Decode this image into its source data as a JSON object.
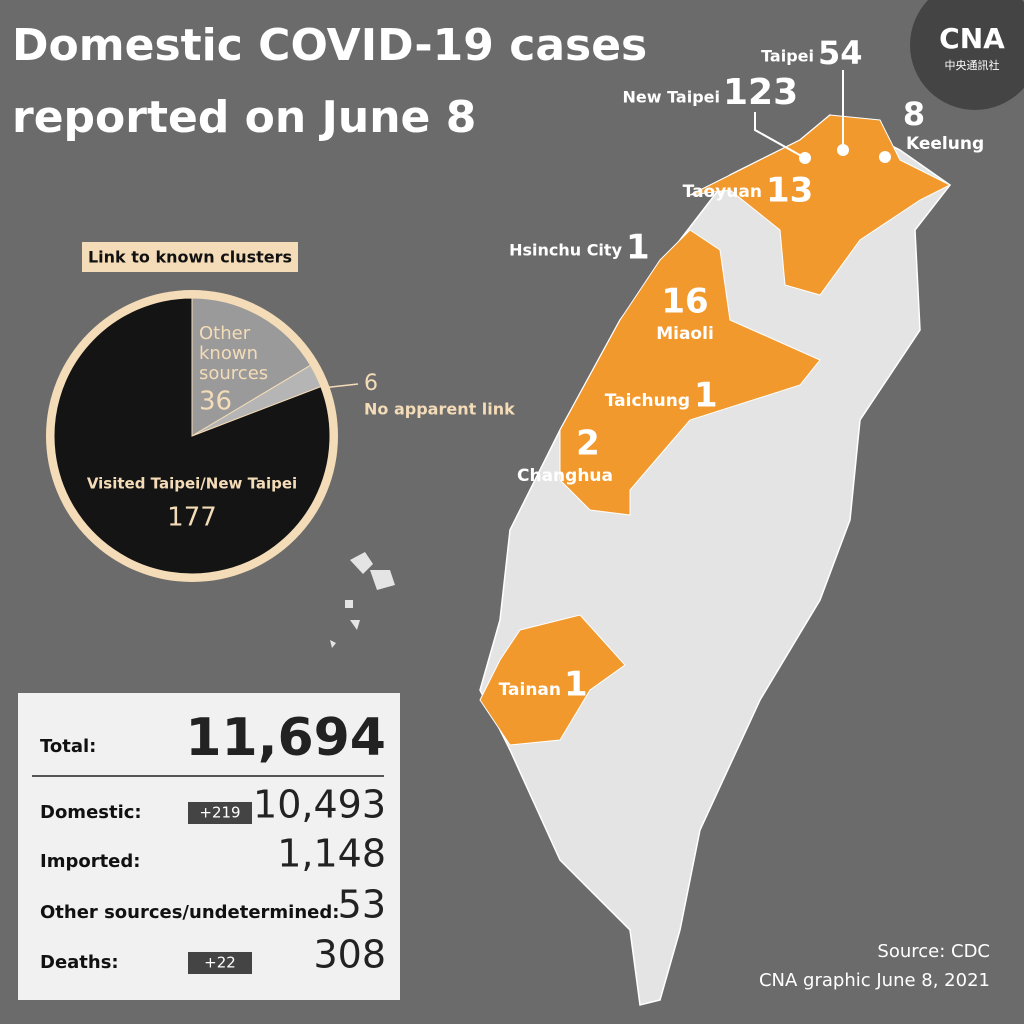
{
  "title": [
    "Domestic COVID-19 cases",
    "reported on June 8"
  ],
  "chart_data": {
    "type": "pie",
    "title": "Link to known clusters",
    "categories": [
      "Other known sources",
      "No apparent link",
      "Visited Taipei/New Taipei"
    ],
    "values": [
      36,
      6,
      177
    ],
    "colors": [
      "#9a9a9a",
      "#b5b5b5",
      "#141414"
    ]
  },
  "map": {
    "regions": [
      {
        "name": "Taipei",
        "cases": "54"
      },
      {
        "name": "New Taipei",
        "cases": "123"
      },
      {
        "name": "Keelung",
        "cases": "8"
      },
      {
        "name": "Taoyuan",
        "cases": "13"
      },
      {
        "name": "Hsinchu City",
        "cases": "1"
      },
      {
        "name": "Miaoli",
        "cases": "16"
      },
      {
        "name": "Taichung",
        "cases": "1"
      },
      {
        "name": "Changhua",
        "cases": "2"
      },
      {
        "name": "Tainan",
        "cases": "1"
      }
    ]
  },
  "stats": {
    "rows": [
      {
        "label": "Total:",
        "value": "11,694"
      },
      {
        "label": "Domestic:",
        "change": "+219",
        "value": "10,493"
      },
      {
        "label": "Imported:",
        "value": "1,148"
      },
      {
        "label": "Other sources/undetermined:",
        "value": "53"
      },
      {
        "label": "Deaths:",
        "change": "+22",
        "value": "308"
      }
    ]
  },
  "footer": {
    "source": "Source: CDC",
    "credit": "CNA graphic June 8, 2021"
  },
  "logo": {
    "name": "CNA",
    "subtitle": "中央通訊社"
  }
}
